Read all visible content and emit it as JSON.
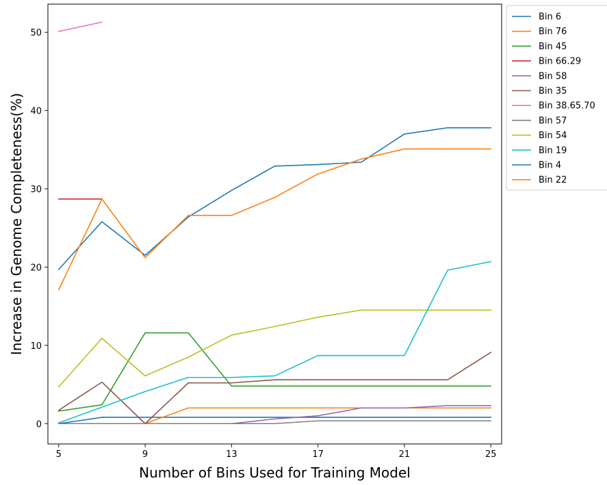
{
  "chart_data": {
    "type": "line",
    "xlabel": "Number of Bins Used for Training Model",
    "ylabel": "Increase in Genome Completeness(%)",
    "xlim": [
      4.5,
      25.5
    ],
    "ylim": [
      -2.6,
      53.6
    ],
    "xticks": [
      5,
      9,
      13,
      17,
      21,
      25
    ],
    "yticks": [
      0,
      10,
      20,
      30,
      40,
      50
    ],
    "x": [
      5,
      7,
      9,
      11,
      13,
      15,
      17,
      19,
      21,
      23,
      25
    ],
    "legend_position": "outside-top-right",
    "series": [
      {
        "name": "Bin 6",
        "color": "#1f77b4",
        "values": [
          0,
          0.8,
          0.8,
          0.8,
          0.8,
          0.8,
          0.8,
          0.8,
          0.8,
          0.8,
          0.8
        ]
      },
      {
        "name": "Bin 76",
        "color": "#ff7f0e",
        "values": [
          0,
          0,
          0,
          2.0,
          2.0,
          2.0,
          2.0,
          2.0,
          2.0,
          2.0,
          2.0
        ]
      },
      {
        "name": "Bin 45",
        "color": "#2ca02c",
        "values": [
          1.6,
          2.4,
          11.6,
          11.6,
          4.8,
          4.8,
          4.8,
          4.8,
          4.8,
          4.8,
          4.8
        ]
      },
      {
        "name": "Bin 66.29",
        "color": "#d62728",
        "values": [
          28.7,
          28.7,
          null,
          null,
          null,
          null,
          null,
          null,
          null,
          null,
          null
        ]
      },
      {
        "name": "Bin 58",
        "color": "#9467bd",
        "values": [
          0,
          0,
          0,
          0,
          0,
          0.6,
          1.0,
          2.0,
          2.0,
          2.3,
          2.3
        ]
      },
      {
        "name": "Bin 35",
        "color": "#8c564b",
        "values": [
          1.7,
          5.3,
          0,
          5.2,
          5.2,
          5.6,
          5.6,
          5.6,
          5.6,
          5.6,
          9.1
        ]
      },
      {
        "name": "Bin 38.65.70",
        "color": "#e377c2",
        "values": [
          50.1,
          51.3,
          null,
          null,
          null,
          null,
          null,
          null,
          null,
          null,
          null
        ]
      },
      {
        "name": "Bin 57",
        "color": "#7f7f7f",
        "values": [
          0,
          0,
          0,
          0,
          0,
          0,
          0.35,
          0.35,
          0.35,
          0.35,
          0.35
        ]
      },
      {
        "name": "Bin 54",
        "color": "#bcbd22",
        "values": [
          4.7,
          10.9,
          6.1,
          8.5,
          11.3,
          12.4,
          13.6,
          14.5,
          14.5,
          14.5,
          14.5
        ]
      },
      {
        "name": "Bin 19",
        "color": "#17becf",
        "values": [
          0.1,
          2.1,
          4.1,
          5.9,
          5.9,
          6.1,
          8.7,
          8.7,
          8.7,
          19.6,
          20.7
        ]
      },
      {
        "name": "Bin 4",
        "color": "#1f77b4",
        "values": [
          19.7,
          25.8,
          21.5,
          26.4,
          29.8,
          32.9,
          33.1,
          33.4,
          37.0,
          37.8,
          37.8
        ]
      },
      {
        "name": "Bin 22",
        "color": "#ff7f0e",
        "values": [
          17.1,
          28.7,
          21.2,
          26.6,
          26.6,
          28.9,
          31.9,
          33.8,
          35.1,
          35.1,
          35.1
        ]
      }
    ]
  }
}
